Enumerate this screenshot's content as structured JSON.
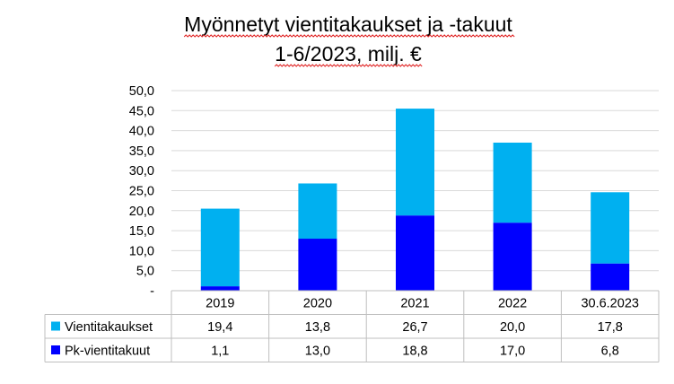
{
  "chart_data": {
    "type": "bar",
    "stacked": true,
    "title_lines": [
      "Myönnetyt vientitakaukset ja -takuut",
      "1-6/2023, milj. €"
    ],
    "categories": [
      "2019",
      "2020",
      "2021",
      "2022",
      "30.6.2023"
    ],
    "series": [
      {
        "name": "Pk-vientitakuut",
        "values": [
          1.1,
          13.0,
          18.8,
          17.0,
          6.8
        ],
        "labels": [
          "1,1",
          "13,0",
          "18,8",
          "17,0",
          "6,8"
        ],
        "color": "#0000FF"
      },
      {
        "name": "Vientitakaukset",
        "values": [
          19.4,
          13.8,
          26.7,
          20.0,
          17.8
        ],
        "labels": [
          "19,4",
          "13,8",
          "26,7",
          "20,0",
          "17,8"
        ],
        "color": "#00B0F0"
      }
    ],
    "table_row_order": [
      1,
      0
    ],
    "yticks": [
      {
        "value": 0,
        "label": "-"
      },
      {
        "value": 5,
        "label": "5,0"
      },
      {
        "value": 10,
        "label": "10,0"
      },
      {
        "value": 15,
        "label": "15,0"
      },
      {
        "value": 20,
        "label": "20,0"
      },
      {
        "value": 25,
        "label": "25,0"
      },
      {
        "value": 30,
        "label": "30,0"
      },
      {
        "value": 35,
        "label": "35,0"
      },
      {
        "value": 40,
        "label": "40,0"
      },
      {
        "value": 45,
        "label": "45,0"
      },
      {
        "value": 50,
        "label": "50,0"
      }
    ],
    "ylim": [
      0,
      50
    ],
    "grid": true,
    "legend": "data-table",
    "gridline_color": "#D9D9D9"
  }
}
